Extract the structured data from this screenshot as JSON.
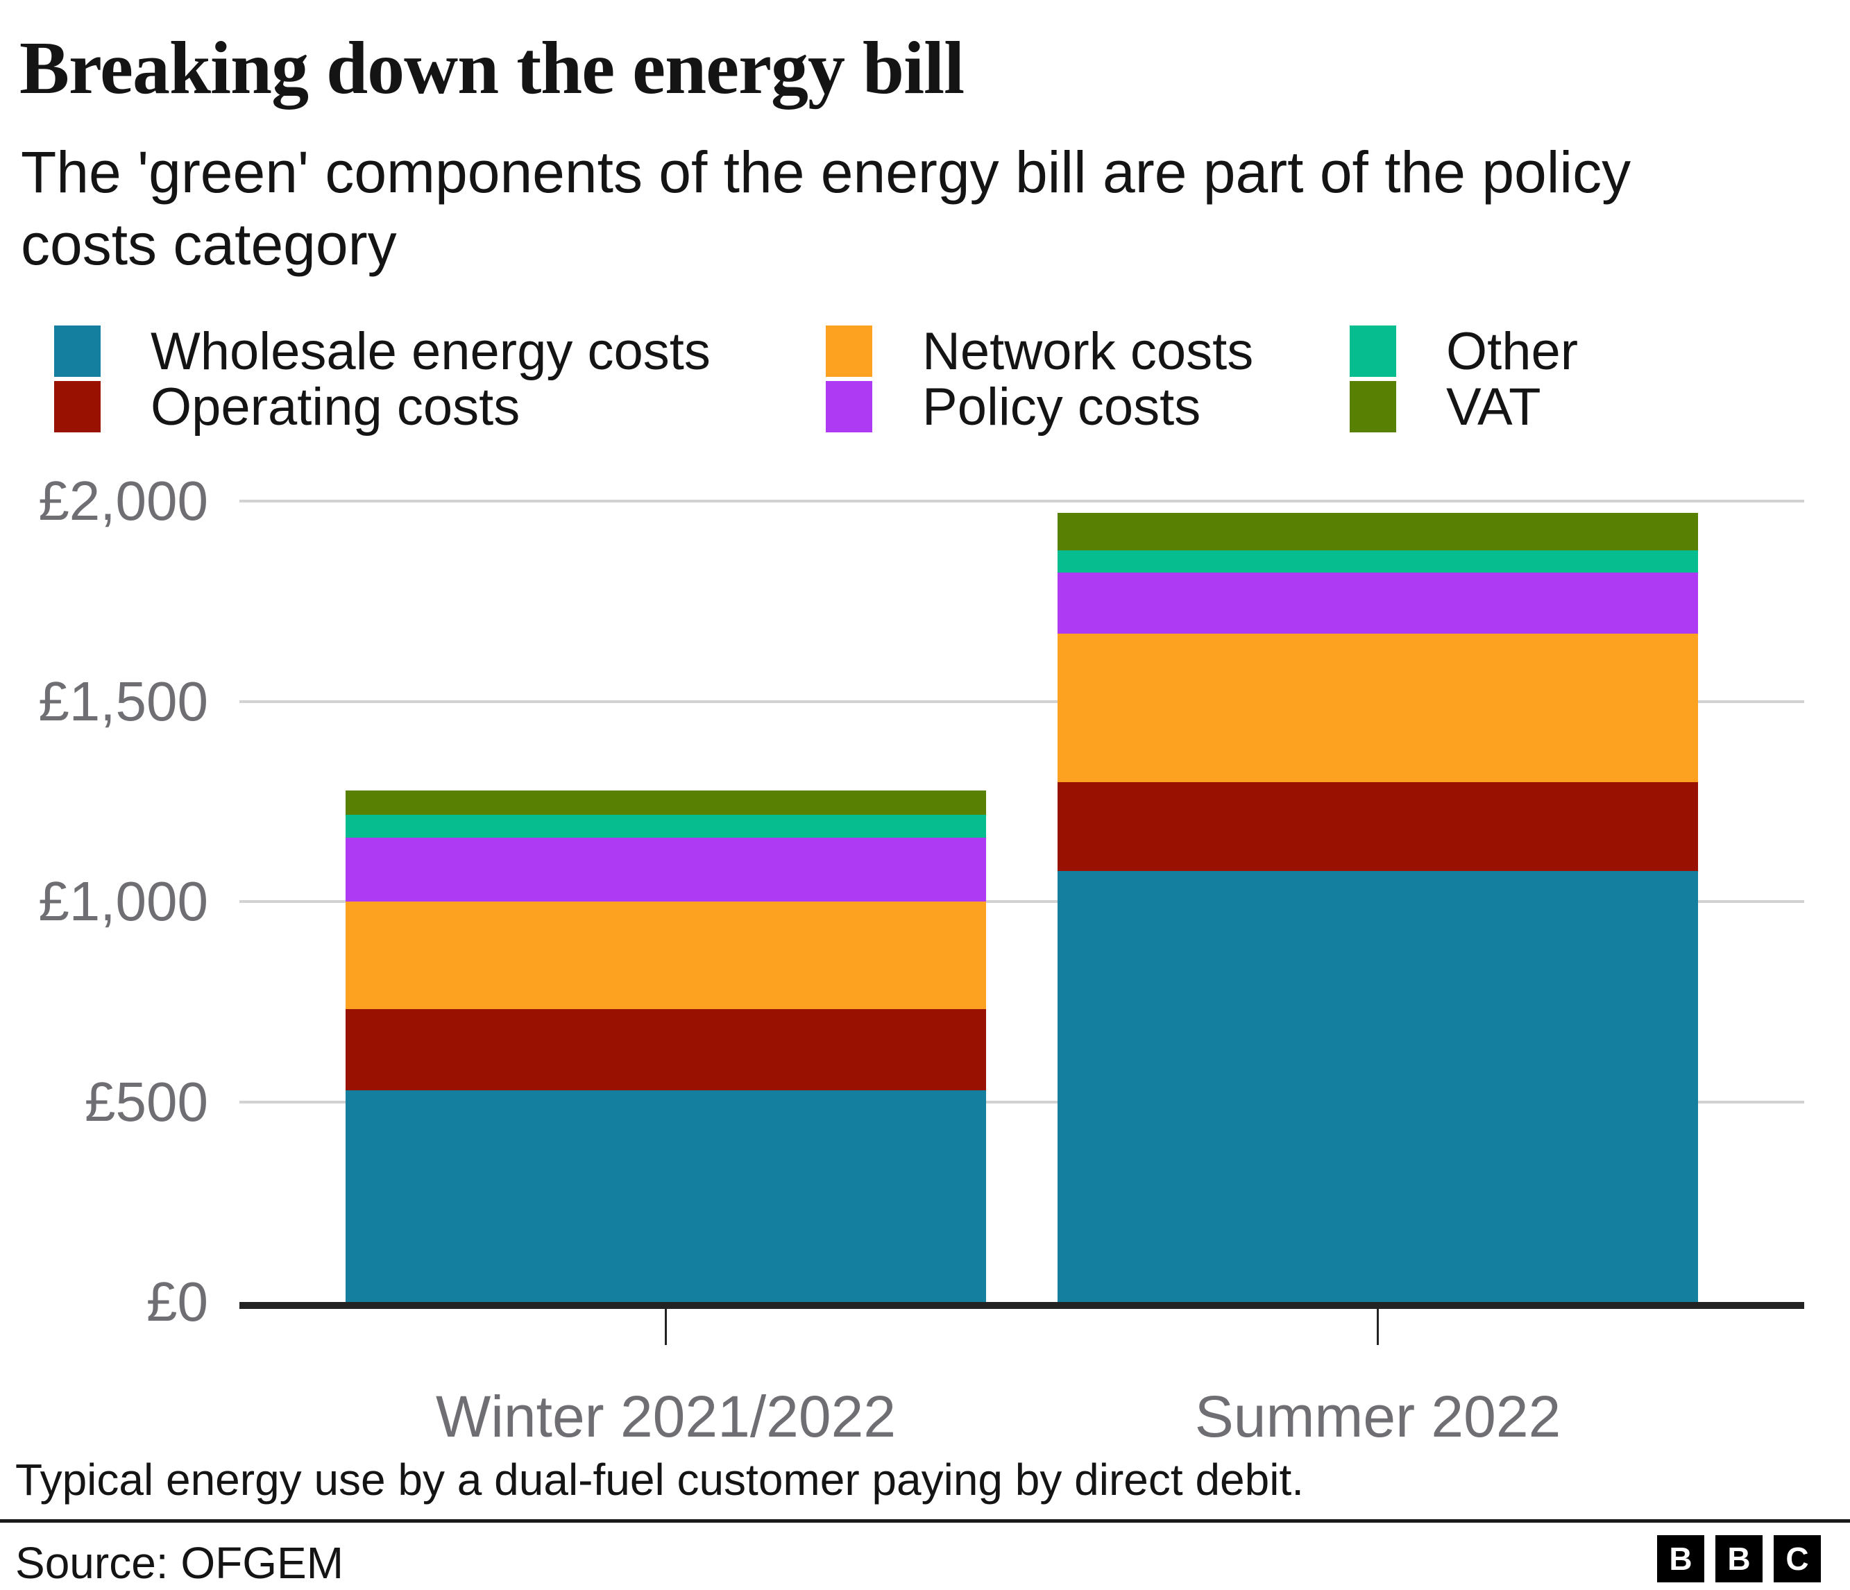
{
  "header": {
    "title": "Breaking down the energy bill",
    "subtitle": "The 'green' components of the energy bill are part of the policy costs category"
  },
  "chart_data": {
    "type": "bar",
    "stacked": true,
    "title": "Breaking down the energy bill",
    "subtitle": "The 'green' components of the energy bill are part of the policy costs category",
    "categories": [
      "Winter 2021/2022",
      "Summer 2022"
    ],
    "series": [
      {
        "name": "Wholesale energy costs",
        "color": "#147F9F",
        "values": [
          528,
          1077
        ]
      },
      {
        "name": "Operating costs",
        "color": "#991100",
        "values": [
          204,
          221
        ]
      },
      {
        "name": "Network costs",
        "color": "#FDA121",
        "values": [
          268,
          371
        ]
      },
      {
        "name": "Policy costs",
        "color": "#AE3BF3",
        "values": [
          159,
          153
        ]
      },
      {
        "name": "Other",
        "color": "#06BD8F",
        "values": [
          57,
          55
        ]
      },
      {
        "name": "VAT",
        "color": "#588002",
        "values": [
          61,
          94
        ]
      }
    ],
    "totals": [
      1277,
      1971
    ],
    "y_ticks": [
      {
        "label": "£2,000",
        "value": 2000
      },
      {
        "label": "£1,500",
        "value": 1500
      },
      {
        "label": "£1,000",
        "value": 1000
      },
      {
        "label": "£500",
        "value": 500
      },
      {
        "label": "£0",
        "value": 0
      }
    ],
    "ylim": [
      0,
      2000
    ],
    "xlabel": "",
    "ylabel": "",
    "currency": "£",
    "grid": true,
    "legend_position": "top"
  },
  "footer": {
    "note": "Typical energy use by a dual-fuel customer paying by direct debit.",
    "source": "Source: OFGEM",
    "logo_letters": [
      "B",
      "B",
      "C"
    ]
  },
  "colors": {
    "text": "#141414",
    "axis_label": "#6E6E73",
    "gridline": "#D2D2D2",
    "axis_line": "#232323",
    "background": "#FFFFFF"
  }
}
